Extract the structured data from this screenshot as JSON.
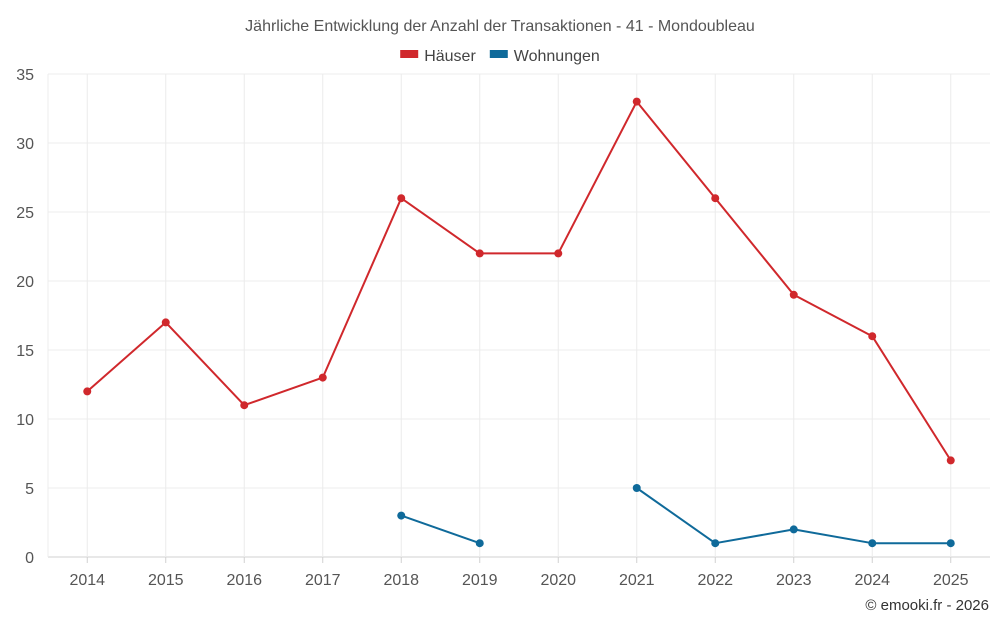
{
  "chart_data": {
    "type": "line",
    "title": "Jährliche Entwicklung der Anzahl der Transaktionen - 41 - Mondoubleau",
    "categories": [
      "2014",
      "2015",
      "2016",
      "2017",
      "2018",
      "2019",
      "2020",
      "2021",
      "2022",
      "2023",
      "2024",
      "2025"
    ],
    "ylim": [
      0,
      35
    ],
    "yticks": [
      0,
      5,
      10,
      15,
      20,
      25,
      30,
      35
    ],
    "grid": true,
    "legend_position": "top-center",
    "series": [
      {
        "name": "Häuser",
        "color": "#d0282c",
        "values": [
          12,
          17,
          11,
          13,
          26,
          22,
          22,
          33,
          26,
          19,
          16,
          7
        ]
      },
      {
        "name": "Wohnungen",
        "color": "#0f6a9a",
        "values": [
          null,
          null,
          null,
          null,
          3,
          1,
          null,
          5,
          1,
          2,
          1,
          1
        ]
      }
    ]
  },
  "credit": "© emooki.fr - 2026"
}
